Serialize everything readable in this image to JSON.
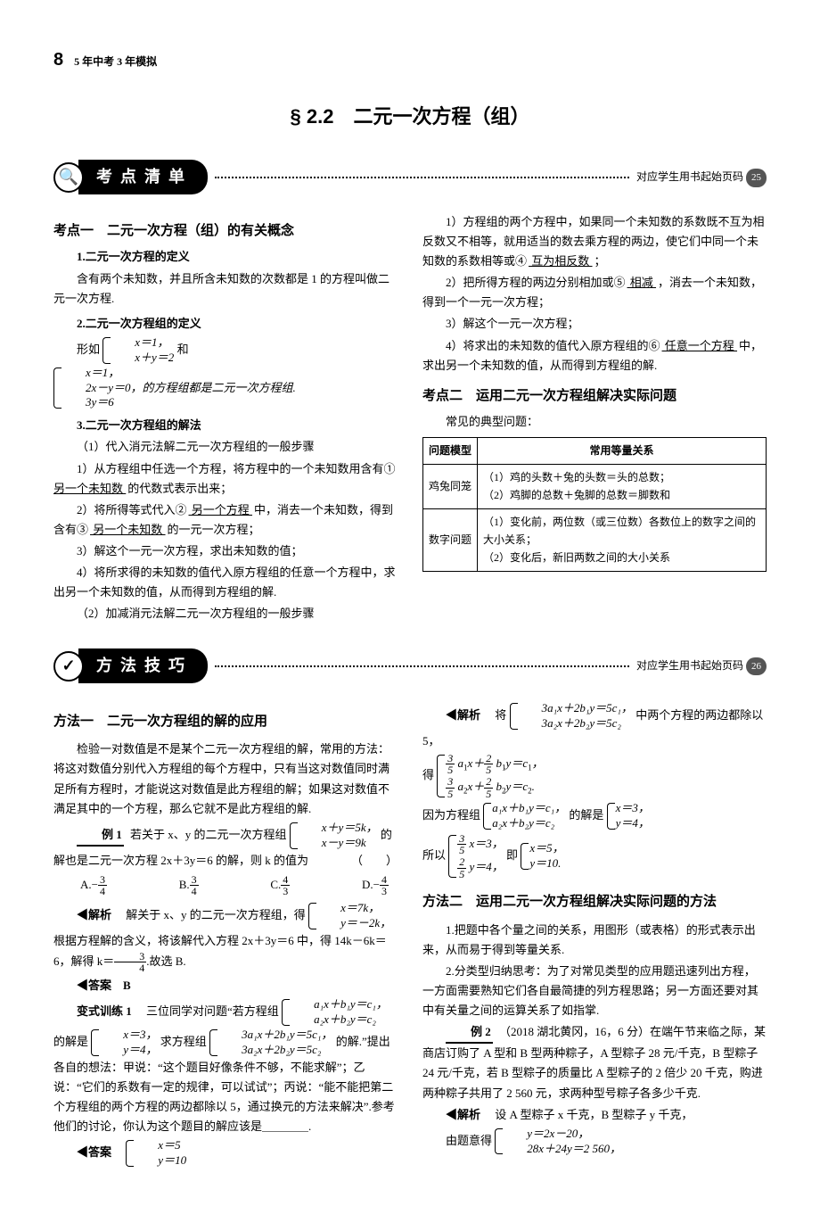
{
  "page": {
    "number": "8",
    "title": "5 年中考 3 年模拟"
  },
  "section_title": "§ 2.2　二元一次方程（组）",
  "banner1": {
    "icon": "🔍",
    "label": "考 点 清 单",
    "right_text": "对应学生用书起始页码",
    "right_badge": "25"
  },
  "banner2": {
    "icon": "✓",
    "label": "方 法 技 巧",
    "right_text": "对应学生用书起始页码",
    "right_badge": "26"
  },
  "kp1": {
    "title": "考点一　二元一次方程（组）的有关概念",
    "s1_title": "1.二元一次方程的定义",
    "s1_body": "含有两个未知数，并且所含未知数的次数都是 1 的方程叫做二元一次方程.",
    "s2_title": "2.二元一次方程组的定义",
    "s2_lead": "形如",
    "s2_sysA_r1": "x＝1，",
    "s2_sysA_r2": "x＋y＝2",
    "s2_and": "和",
    "s2_sysB_r1": "x＝1，",
    "s2_sysB_r2": "2x－y＝0，的方程组都是二元一次方程组.",
    "s2_sysB_r3": "3y＝6",
    "s3_title": "3.二元一次方程组的解法",
    "s3_p1": "（1）代入消元法解二元一次方程组的一般步骤",
    "s3_p2a": "1）从方程组中任选一个方程，将方程中的一个未知数用含有①",
    "s3_b1": " 另一个未知数 ",
    "s3_p2b": "的代数式表示出来；",
    "s3_p3a": "2）将所得等式代入②",
    "s3_b2": " 另一个方程 ",
    "s3_p3b": "中，消去一个未知数，得到含有③",
    "s3_b3": " 另一个未知数 ",
    "s3_p3c": "的一元一次方程；",
    "s3_p4": "3）解这个一元一次方程，求出未知数的值；",
    "s3_p5": "4）将所求得的未知数的值代入原方程组的任意一个方程中，求出另一个未知数的值，从而得到方程组的解.",
    "s3_p6": "（2）加减消元法解二元一次方程组的一般步骤",
    "r_p1a": "1）方程组的两个方程中，如果同一个未知数的系数既不互为相反数又不相等，就用适当的数去乘方程的两边，使它们中同一个未知数的系数相等或④",
    "r_b4": " 互为相反数 ",
    "r_p1b": "；",
    "r_p2a": "2）把所得方程的两边分别相加或⑤",
    "r_b5": " 相减 ",
    "r_p2b": "，消去一个未知数，得到一个一元一次方程；",
    "r_p3": "3）解这个一元一次方程；",
    "r_p4a": "4）将求出的未知数的值代入原方程组的⑥",
    "r_b6": " 任意一个方程 ",
    "r_p4b": "中，求出另一个未知数的值，从而得到方程组的解."
  },
  "kp2": {
    "title": "考点二　运用二元一次方程组解决实际问题",
    "lead": "常见的典型问题：",
    "th1": "问题模型",
    "th2": "常用等量关系",
    "r1c1": "鸡兔同笼",
    "r1c2": "（1）鸡的头数＋兔的头数＝头的总数；\n（2）鸡脚的总数＋兔脚的总数＝脚数和",
    "r2c1": "数字问题",
    "r2c2": "（1）变化前，两位数（或三位数）各数位上的数字之间的大小关系；\n（2）变化后，新旧两数之间的大小关系"
  },
  "m1": {
    "title": "方法一　二元一次方程组的解的应用",
    "p1": "检验一对数值是不是某个二元一次方程组的解，常用的方法：将这对数值分别代入方程组的每个方程中，只有当这对数值同时满足所有方程时，才能说这对数值是此方程组的解；如果这对数值不满足其中的一个方程，那么它就不是此方程组的解.",
    "ex1_label": "例 1",
    "ex1_a": "若关于 x、y 的二元一次方程组",
    "ex1_sys_r1": "x＋y＝5k，",
    "ex1_sys_r2": "x－y＝9k",
    "ex1_b": "的解也是二元一次方程 2x＋3y＝6 的解，则 k 的值为",
    "ex1_paren": "（　　）",
    "ex1_A": "A.",
    "ex1_B": "B.",
    "ex1_C": "C.",
    "ex1_D": "D.",
    "ex1_ans_head": "解析",
    "ex1_ans_a": "解关于 x、y 的二元一次方程组，得",
    "ex1_ans_sys_r1": "x＝7k，",
    "ex1_ans_sys_r2": "y＝－2k，",
    "ex1_ans_b": "根据方程解的含义，将该解代入方程 2x＋3y＝6 中，得 14k－6k＝6，解得 k＝",
    "ex1_ans_c": ".故选 B.",
    "ex1_ans_label": "答案",
    "ex1_ans_val": "B",
    "var1_label": "变式训练 1",
    "var1_a": "三位同学对问题“若方程组",
    "var1_sys1_r1": "a₁x＋b₁y＝c₁，",
    "var1_sys1_r2": "a₂x＋b₂y＝c₂",
    "var1_b": "的解是",
    "var1_sys2_r1": "x＝3，",
    "var1_sys2_r2": "y＝4，",
    "var1_c": "求方程组",
    "var1_sys3_r1": "3a₁x＋2b₁y＝5c₁，",
    "var1_sys3_r2": "3a₂x＋2b₂y＝5c₂",
    "var1_d": "的解.”提出各自的想法：甲说：“这个题目好像条件不够，不能求解”；乙说：“它们的系数有一定的规律，可以试试”；丙说：“能不能把第二个方程组的两个方程的两边都除以 5，通过换元的方法来解决”.参考他们的讨论，你认为这个题目的解应该是＿＿＿＿.",
    "var1_ans_label": "答案",
    "var1_ans_r1": "x＝5",
    "var1_ans_r2": "y＝10"
  },
  "m1r": {
    "jx_label": "解析",
    "jx_a": "将",
    "jx_sys1_r1": "3a₁x＋2b₁y＝5c₁，",
    "jx_sys1_r2": "3a₂x＋2b₂y＝5c₂",
    "jx_b": "中两个方程的两边都除以 5，",
    "jx_get": "得",
    "jx_c": "因为方程组",
    "jx_sys3_r1": "a₁x＋b₁y＝c₁，",
    "jx_sys3_r2": "a₂x＋b₂y＝c₂",
    "jx_d": "的解是",
    "jx_sys4_r1": "x＝3，",
    "jx_sys4_r2": "y＝4，",
    "jx_so": "所以",
    "jx_ji": "即",
    "jx_sys6_r1": "x＝5，",
    "jx_sys6_r2": "y＝10."
  },
  "m2": {
    "title": "方法二　运用二元一次方程组解决实际问题的方法",
    "p1": "1.把题中各个量之间的关系，用图形（或表格）的形式表示出来，从而易于得到等量关系.",
    "p2": "2.分类型归纳思考：为了对常见类型的应用题迅速列出方程，一方面需要熟知它们各自最简捷的列方程思路；另一方面还要对其中有关量之间的运算关系了如指掌.",
    "ex2_label": "例 2",
    "ex2_body": "（2018 湖北黄冈，16，6 分）在端午节来临之际，某商店订购了 A 型和 B 型两种粽子，A 型粽子 28 元/千克，B 型粽子 24 元/千克，若 B 型粽子的质量比 A 型粽子的 2 倍少 20 千克，购进两种粽子共用了 2 560 元，求两种型号粽子各多少千克.",
    "ex2_jx_label": "解析",
    "ex2_jx_a": "设 A 型粽子 x 千克，B 型粽子 y 千克，",
    "ex2_jx_b": "由题意得",
    "ex2_sys_r1": "y＝2x－20，",
    "ex2_sys_r2": "28x＋24y＝2 560，"
  }
}
